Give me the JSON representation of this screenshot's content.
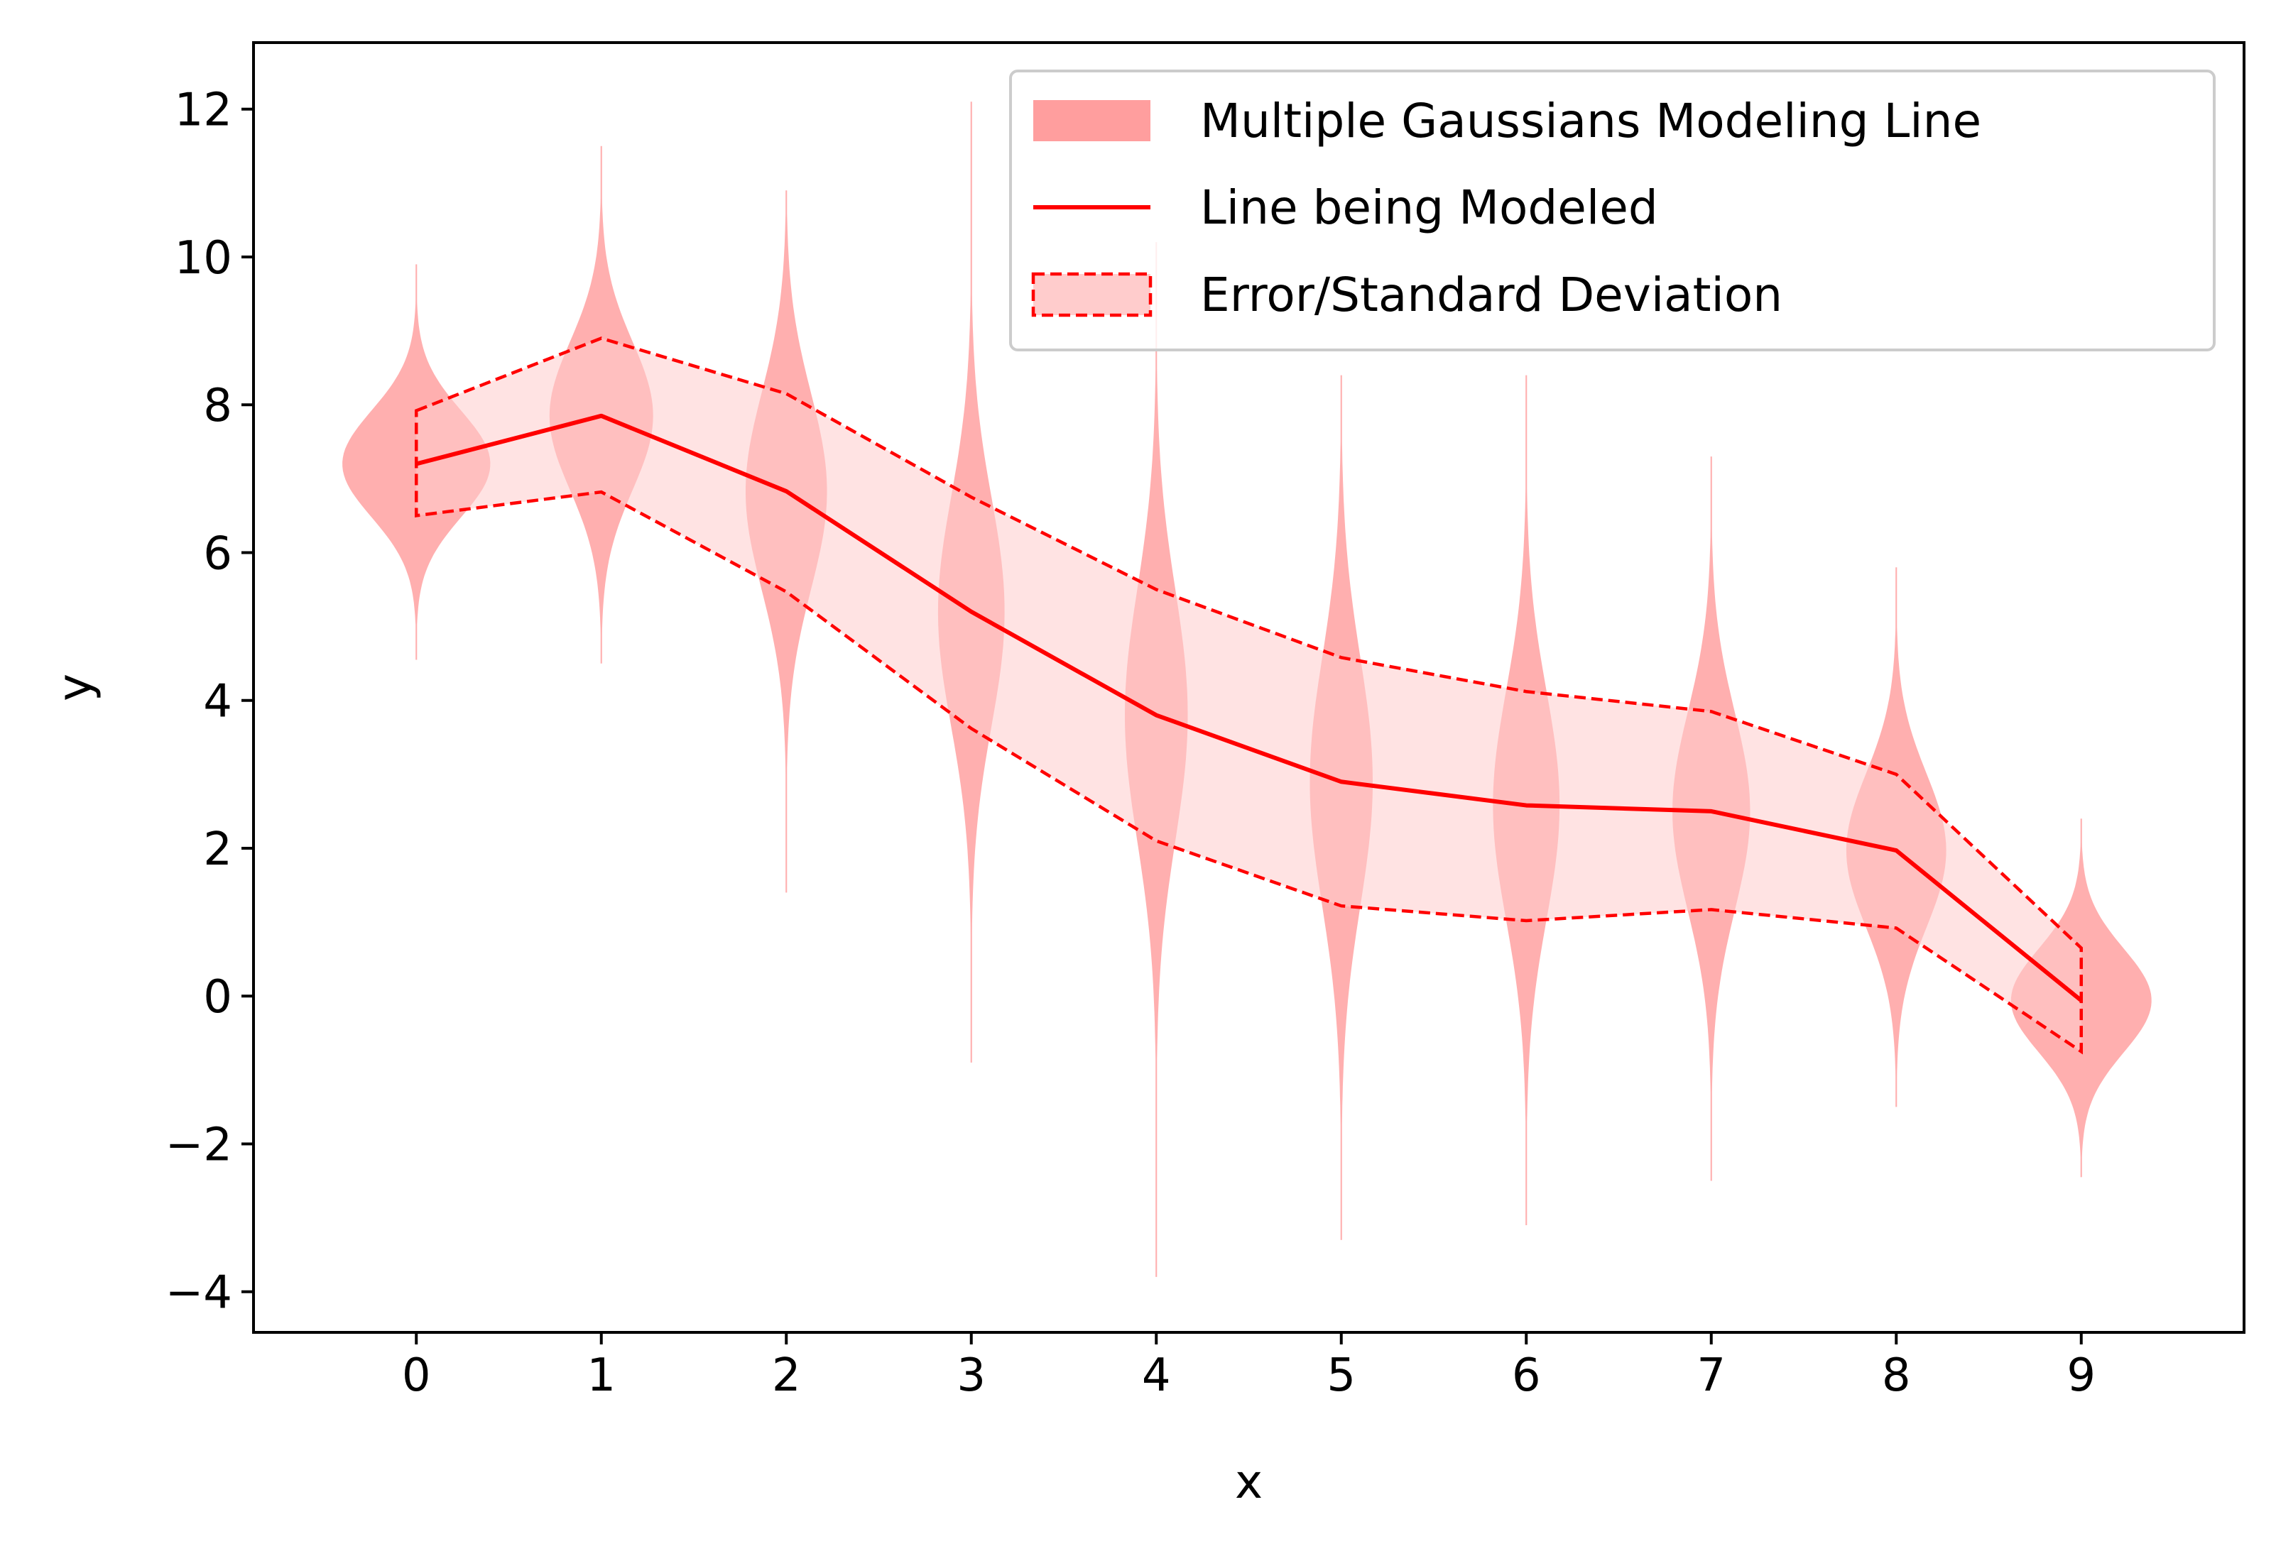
{
  "chart_data": {
    "type": "line",
    "title": "",
    "xlabel": "x",
    "ylabel": "y",
    "xlim": [
      -0.88,
      9.88
    ],
    "ylim": [
      -4.55,
      12.9
    ],
    "x_ticks": [
      0,
      1,
      2,
      3,
      4,
      5,
      6,
      7,
      8,
      9
    ],
    "y_ticks": [
      -4,
      -2,
      0,
      2,
      4,
      6,
      8,
      10,
      12
    ],
    "x_tick_labels": [
      "0",
      "1",
      "2",
      "3",
      "4",
      "5",
      "6",
      "7",
      "8",
      "9"
    ],
    "y_tick_labels": [
      "−4",
      "−2",
      "0",
      "2",
      "4",
      "6",
      "8",
      "10",
      "12"
    ],
    "grid": false,
    "legend_position": "top-right",
    "series": [
      {
        "name": "Line being Modeled",
        "kind": "line",
        "color": "#ff0000",
        "x": [
          0,
          1,
          2,
          3,
          4,
          5,
          6,
          7,
          8,
          9
        ],
        "y": [
          7.2,
          7.85,
          6.83,
          5.2,
          3.8,
          2.9,
          2.58,
          2.5,
          1.97,
          -0.06
        ]
      },
      {
        "name": "Error/Standard Deviation",
        "kind": "band",
        "fill_color": "#ffcccc",
        "edge_color": "#ff0000",
        "edge_style": "dashed",
        "x": [
          0,
          1,
          2,
          3,
          4,
          5,
          6,
          7,
          8,
          9
        ],
        "upper": [
          7.92,
          8.9,
          8.15,
          6.75,
          5.5,
          4.58,
          4.12,
          3.85,
          3.0,
          0.65
        ],
        "lower": [
          6.5,
          6.82,
          5.47,
          3.62,
          2.1,
          1.22,
          1.02,
          1.17,
          0.92,
          -0.75
        ]
      },
      {
        "name": "Multiple Gaussians Modeling Line",
        "kind": "violin",
        "color": "#ff9999",
        "violins": [
          {
            "x": 0,
            "center": 7.2,
            "sigma": 0.72,
            "max_half_width": 0.4,
            "tail_low": 4.55,
            "tail_high": 9.9
          },
          {
            "x": 1,
            "center": 7.85,
            "sigma": 1.0,
            "max_half_width": 0.28,
            "tail_low": 4.5,
            "tail_high": 11.5
          },
          {
            "x": 2,
            "center": 6.83,
            "sigma": 1.33,
            "max_half_width": 0.22,
            "tail_low": 1.4,
            "tail_high": 10.9
          },
          {
            "x": 3,
            "center": 5.2,
            "sigma": 1.55,
            "max_half_width": 0.18,
            "tail_low": -0.9,
            "tail_high": 12.1
          },
          {
            "x": 4,
            "center": 3.8,
            "sigma": 1.7,
            "max_half_width": 0.17,
            "tail_low": -3.8,
            "tail_high": 10.2
          },
          {
            "x": 5,
            "center": 2.9,
            "sigma": 1.68,
            "max_half_width": 0.17,
            "tail_low": -3.3,
            "tail_high": 8.4
          },
          {
            "x": 6,
            "center": 2.58,
            "sigma": 1.55,
            "max_half_width": 0.18,
            "tail_low": -3.1,
            "tail_high": 8.4
          },
          {
            "x": 7,
            "center": 2.5,
            "sigma": 1.34,
            "max_half_width": 0.21,
            "tail_low": -2.5,
            "tail_high": 7.3
          },
          {
            "x": 8,
            "center": 1.97,
            "sigma": 1.04,
            "max_half_width": 0.27,
            "tail_low": -1.5,
            "tail_high": 5.8
          },
          {
            "x": 9,
            "center": -0.06,
            "sigma": 0.7,
            "max_half_width": 0.38,
            "tail_low": -2.45,
            "tail_high": 2.4
          }
        ]
      }
    ],
    "legend": [
      {
        "label": "Multiple Gaussians Modeling Line",
        "kind": "patch"
      },
      {
        "label": "Line being Modeled",
        "kind": "line"
      },
      {
        "label": "Error/Standard Deviation",
        "kind": "dashed-patch"
      }
    ]
  }
}
